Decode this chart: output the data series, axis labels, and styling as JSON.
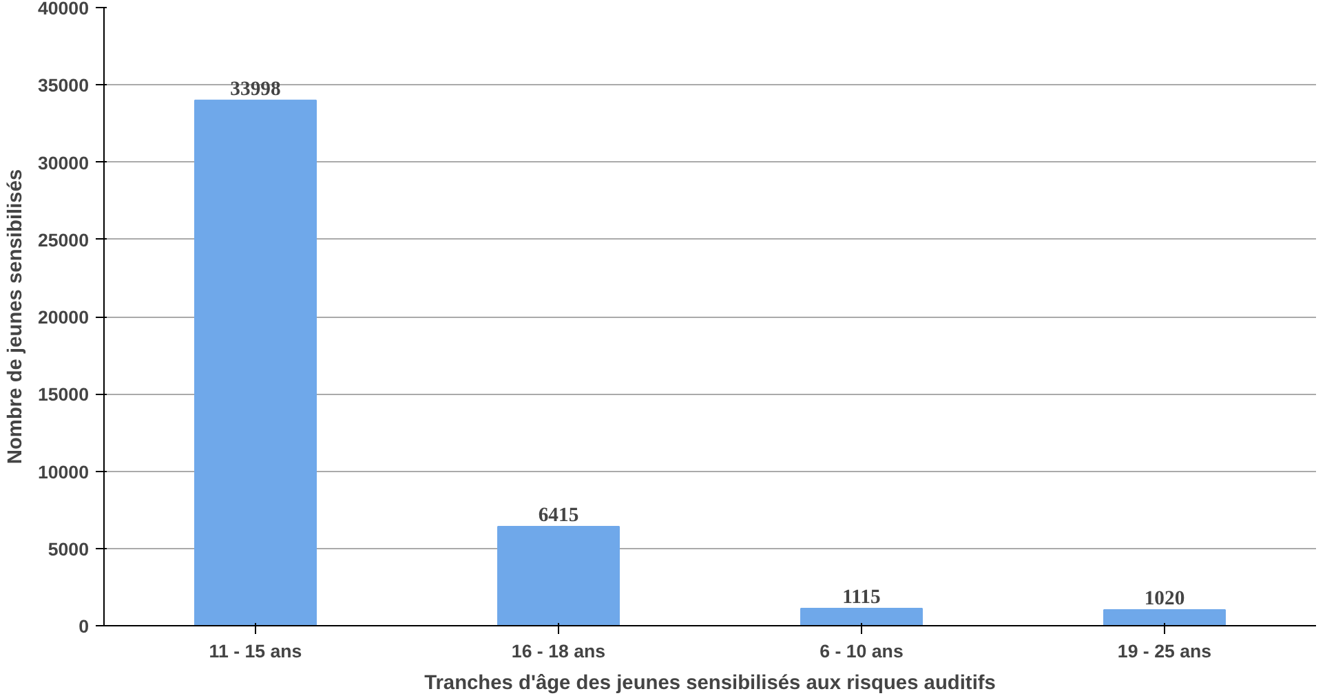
{
  "chart_data": {
    "type": "bar",
    "xlabel": "Tranches d'âge des jeunes sensibilisés aux risques auditifs",
    "ylabel": "Nombre de jeunes sensibilisés",
    "categories": [
      "11 - 15 ans",
      "16 - 18 ans",
      "6 - 10 ans",
      "19 - 25 ans"
    ],
    "values": [
      33998,
      6415,
      1115,
      1020
    ],
    "color": "#6fa8ea",
    "ylim": [
      0,
      40000
    ],
    "yticks": [
      0,
      5000,
      10000,
      15000,
      20000,
      25000,
      30000,
      35000,
      40000
    ],
    "grid": "y",
    "data_labels": true
  }
}
